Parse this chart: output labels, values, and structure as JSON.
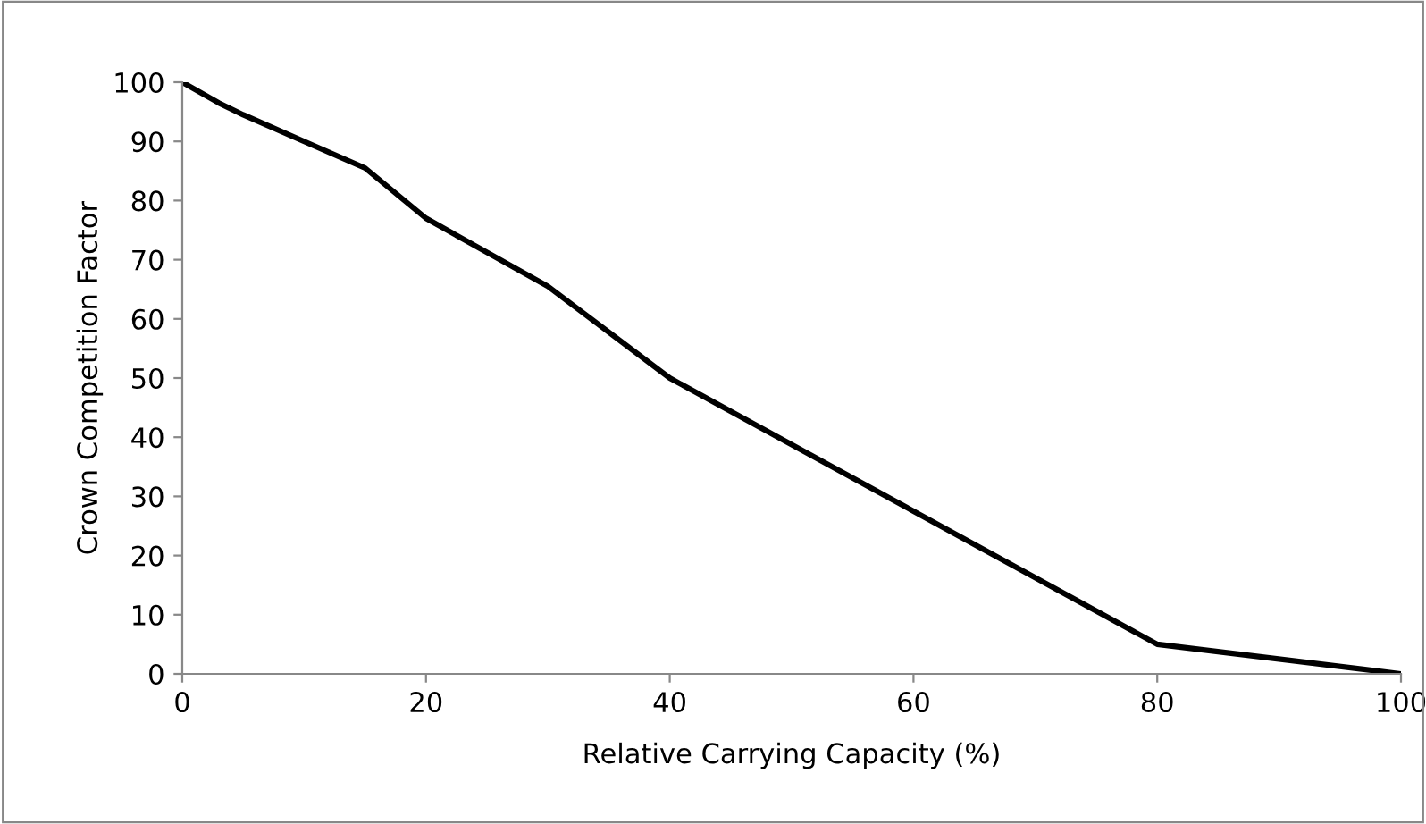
{
  "chart_data": {
    "type": "line",
    "xlabel": "Relative Carrying Capacity (%)",
    "ylabel": "Crown Competition Factor",
    "x": [
      0,
      3,
      5,
      10,
      15,
      20,
      30,
      40,
      80,
      100
    ],
    "series": [
      {
        "color": "#000000",
        "values": [
          100,
          96.5,
          94.5,
          90,
          85.5,
          77,
          65.5,
          50,
          5,
          0
        ]
      }
    ],
    "xlim": [
      0,
      100
    ],
    "xticks": [
      0,
      20,
      40,
      60,
      80,
      100
    ],
    "ylim": [
      0,
      100
    ],
    "yticks": [
      0,
      10,
      20,
      30,
      40,
      50,
      60,
      70,
      80,
      90,
      100
    ],
    "grid": false,
    "legend": false,
    "marker": "none",
    "line_style": "solid"
  }
}
